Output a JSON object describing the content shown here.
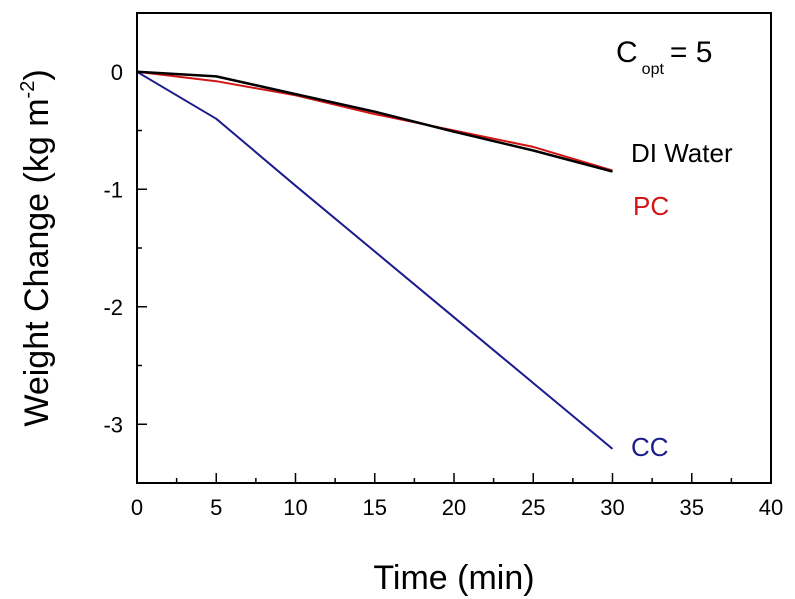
{
  "chart_data": {
    "type": "line",
    "xlabel": "Time (min)",
    "ylabel_main": "Weight Change (kg m",
    "ylabel_sup": "-2",
    "ylabel_close": ")",
    "xlim": [
      0,
      40
    ],
    "ylim": [
      -3.5,
      0.5
    ],
    "xticks": [
      0,
      5,
      10,
      15,
      20,
      25,
      30,
      35,
      40
    ],
    "yticks": [
      0,
      -1,
      -2,
      -3
    ],
    "xtick_labels": [
      "0",
      "5",
      "10",
      "15",
      "20",
      "25",
      "30",
      "35",
      "40"
    ],
    "ytick_labels": [
      "0",
      "-1",
      "-2",
      "-3"
    ],
    "grid": false,
    "annotation": {
      "c": "C",
      "sub": "opt",
      "rest": "= 5"
    },
    "series": [
      {
        "name": "DI Water",
        "color": "#000000",
        "x": [
          0,
          5,
          10,
          15,
          20,
          25,
          30
        ],
        "y": [
          0,
          -0.04,
          -0.19,
          -0.34,
          -0.51,
          -0.67,
          -0.85
        ]
      },
      {
        "name": "PC",
        "color": "#d21414",
        "x": [
          0,
          5,
          10,
          15,
          20,
          25,
          30
        ],
        "y": [
          0,
          -0.08,
          -0.2,
          -0.36,
          -0.5,
          -0.64,
          -0.84
        ]
      },
      {
        "name": "CC",
        "color": "#1b1b8c",
        "x": [
          0,
          5,
          10,
          15,
          20,
          25,
          30
        ],
        "y": [
          0,
          -0.4,
          -0.97,
          -1.53,
          -2.09,
          -2.65,
          -3.21
        ]
      }
    ]
  }
}
